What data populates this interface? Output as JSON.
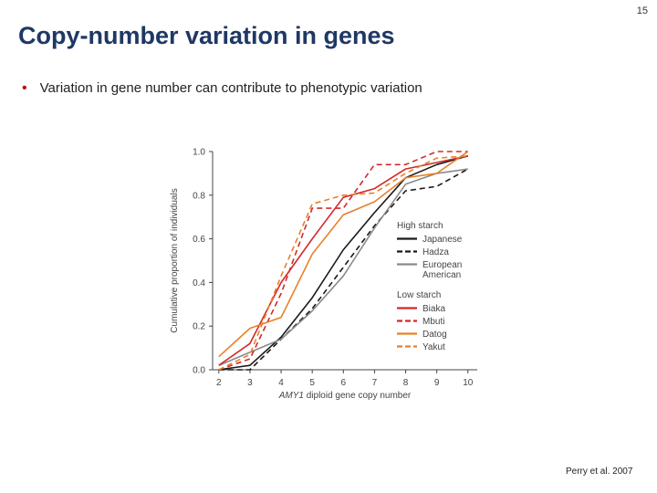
{
  "slide": {
    "title": "Copy-number variation in genes",
    "page_number": "15",
    "bullet": "Variation in gene number can contribute to phenotypic variation",
    "citation": "Perry et al. 2007"
  },
  "chart_data": {
    "type": "line",
    "xlabel_italic": "AMY1",
    "xlabel_rest": " diploid gene copy number",
    "ylabel": "Cumulative proportion of individuals",
    "x_ticks": [
      "2",
      "3",
      "4",
      "5",
      "6",
      "7",
      "8",
      "9",
      "10"
    ],
    "y_ticks": [
      "0.0",
      "0.2",
      "0.4",
      "0.6",
      "0.8",
      "1.0"
    ],
    "xlim": [
      1.8,
      10.3
    ],
    "ylim": [
      0,
      1.0
    ],
    "grid": false,
    "legend_position": "right",
    "legend_groups": [
      {
        "label": "High starch",
        "series": [
          "Japanese",
          "Hadza",
          "European American"
        ]
      },
      {
        "label": "Low starch",
        "series": [
          "Biaka",
          "Mbuti",
          "Datog",
          "Yakut"
        ]
      }
    ],
    "series": [
      {
        "name": "Japanese",
        "color": "#1a1a1a",
        "dash": "solid",
        "x": [
          2,
          3,
          4,
          5,
          6,
          7,
          8,
          9,
          10
        ],
        "y": [
          0.0,
          0.02,
          0.15,
          0.33,
          0.55,
          0.72,
          0.88,
          0.94,
          0.98
        ]
      },
      {
        "name": "Hadza",
        "color": "#1a1a1a",
        "dash": "dashed",
        "x": [
          2,
          3,
          4,
          5,
          6,
          7,
          8,
          9,
          10
        ],
        "y": [
          0.0,
          0.0,
          0.14,
          0.28,
          0.47,
          0.66,
          0.82,
          0.84,
          0.92
        ]
      },
      {
        "name": "European American",
        "color": "#8a8a8a",
        "dash": "solid",
        "x": [
          2,
          3,
          4,
          5,
          6,
          7,
          8,
          9,
          10
        ],
        "y": [
          0.02,
          0.08,
          0.14,
          0.27,
          0.43,
          0.65,
          0.85,
          0.9,
          0.92
        ]
      },
      {
        "name": "Biaka",
        "color": "#d12a2a",
        "dash": "solid",
        "x": [
          2,
          3,
          4,
          5,
          6,
          7,
          8,
          9,
          10
        ],
        "y": [
          0.02,
          0.12,
          0.4,
          0.6,
          0.79,
          0.83,
          0.92,
          0.95,
          0.98
        ]
      },
      {
        "name": "Mbuti",
        "color": "#d12a2a",
        "dash": "dashed",
        "x": [
          2,
          3,
          4,
          5,
          6,
          7,
          8,
          9,
          10
        ],
        "y": [
          0.0,
          0.05,
          0.35,
          0.74,
          0.74,
          0.94,
          0.94,
          1.0,
          1.0
        ]
      },
      {
        "name": "Datog",
        "color": "#e8802a",
        "dash": "solid",
        "x": [
          2,
          3,
          4,
          5,
          6,
          7,
          8,
          9,
          10
        ],
        "y": [
          0.06,
          0.19,
          0.24,
          0.53,
          0.71,
          0.77,
          0.88,
          0.9,
          1.0
        ]
      },
      {
        "name": "Yakut",
        "color": "#e8802a",
        "dash": "dashed",
        "x": [
          2,
          3,
          4,
          5,
          6,
          7,
          8,
          9,
          10
        ],
        "y": [
          0.0,
          0.07,
          0.43,
          0.76,
          0.8,
          0.81,
          0.9,
          0.97,
          0.98
        ]
      }
    ]
  }
}
